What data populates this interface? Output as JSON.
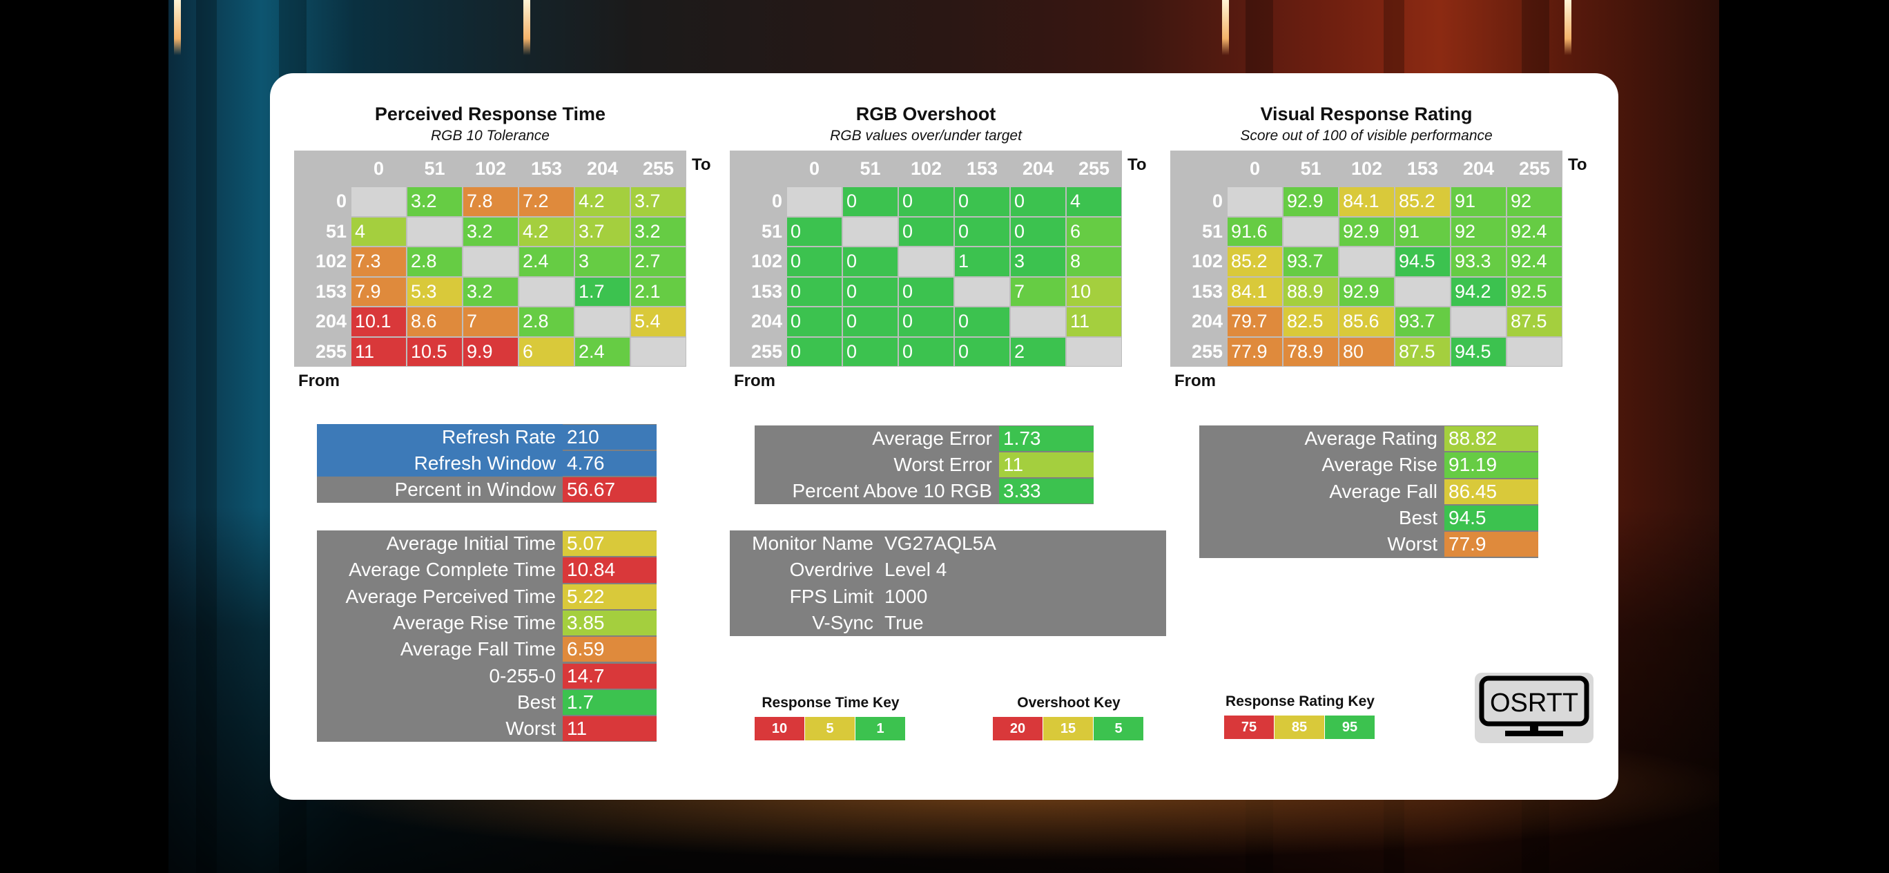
{
  "colors": {
    "heat_green": "#3cc24f",
    "heat_lightgreen": "#66cc44",
    "heat_yellowgreen": "#a4cf3e",
    "heat_yellow": "#d9c93a",
    "heat_orange": "#df8a3c",
    "heat_red": "#d9383a",
    "diag_gray": "#d4d4d4",
    "panel_gray": "#808080",
    "panel_blue": "#3d7ab8"
  },
  "chart_data": [
    {
      "type": "heatmap",
      "title": "Perceived Response Time",
      "subtitle": "RGB 10 Tolerance",
      "x_label": "To",
      "y_label": "From",
      "columns": [
        "0",
        "51",
        "102",
        "153",
        "204",
        "255"
      ],
      "rows": [
        "0",
        "51",
        "102",
        "153",
        "204",
        "255"
      ],
      "values": [
        [
          "",
          "3.2",
          "7.8",
          "7.2",
          "4.2",
          "3.7"
        ],
        [
          "4",
          "",
          "3.2",
          "4.2",
          "3.7",
          "3.2"
        ],
        [
          "7.3",
          "2.8",
          "",
          "2.4",
          "3",
          "2.7"
        ],
        [
          "7.9",
          "5.3",
          "3.2",
          "",
          "1.7",
          "2.1"
        ],
        [
          "10.1",
          "8.6",
          "7",
          "2.8",
          "",
          "5.4"
        ],
        [
          "11",
          "10.5",
          "9.9",
          "6",
          "2.4",
          ""
        ]
      ],
      "cell_colors": [
        [
          "diag_gray",
          "heat_lightgreen",
          "heat_orange",
          "heat_orange",
          "heat_yellowgreen",
          "heat_yellowgreen"
        ],
        [
          "heat_yellowgreen",
          "diag_gray",
          "heat_lightgreen",
          "heat_yellowgreen",
          "heat_yellowgreen",
          "heat_lightgreen"
        ],
        [
          "heat_orange",
          "heat_lightgreen",
          "diag_gray",
          "heat_lightgreen",
          "heat_lightgreen",
          "heat_lightgreen"
        ],
        [
          "heat_orange",
          "heat_yellow",
          "heat_lightgreen",
          "diag_gray",
          "heat_green",
          "heat_lightgreen"
        ],
        [
          "heat_red",
          "heat_orange",
          "heat_orange",
          "heat_lightgreen",
          "diag_gray",
          "heat_yellow"
        ],
        [
          "heat_red",
          "heat_red",
          "heat_red",
          "heat_yellow",
          "heat_lightgreen",
          "diag_gray"
        ]
      ]
    },
    {
      "type": "heatmap",
      "title": "RGB Overshoot",
      "subtitle": "RGB values over/under target",
      "x_label": "To",
      "y_label": "From",
      "columns": [
        "0",
        "51",
        "102",
        "153",
        "204",
        "255"
      ],
      "rows": [
        "0",
        "51",
        "102",
        "153",
        "204",
        "255"
      ],
      "values": [
        [
          "",
          "0",
          "0",
          "0",
          "0",
          "4"
        ],
        [
          "0",
          "",
          "0",
          "0",
          "0",
          "6"
        ],
        [
          "0",
          "0",
          "",
          "1",
          "3",
          "8"
        ],
        [
          "0",
          "0",
          "0",
          "",
          "7",
          "10"
        ],
        [
          "0",
          "0",
          "0",
          "0",
          "",
          "11"
        ],
        [
          "0",
          "0",
          "0",
          "0",
          "2",
          ""
        ]
      ],
      "cell_colors": [
        [
          "diag_gray",
          "heat_green",
          "heat_green",
          "heat_green",
          "heat_green",
          "heat_green"
        ],
        [
          "heat_green",
          "diag_gray",
          "heat_green",
          "heat_green",
          "heat_green",
          "heat_lightgreen"
        ],
        [
          "heat_green",
          "heat_green",
          "diag_gray",
          "heat_green",
          "heat_green",
          "heat_lightgreen"
        ],
        [
          "heat_green",
          "heat_green",
          "heat_green",
          "diag_gray",
          "heat_lightgreen",
          "heat_yellowgreen"
        ],
        [
          "heat_green",
          "heat_green",
          "heat_green",
          "heat_green",
          "diag_gray",
          "heat_yellowgreen"
        ],
        [
          "heat_green",
          "heat_green",
          "heat_green",
          "heat_green",
          "heat_green",
          "diag_gray"
        ]
      ]
    },
    {
      "type": "heatmap",
      "title": "Visual Response Rating",
      "subtitle": "Score out of 100 of visible performance",
      "x_label": "To",
      "y_label": "From",
      "columns": [
        "0",
        "51",
        "102",
        "153",
        "204",
        "255"
      ],
      "rows": [
        "0",
        "51",
        "102",
        "153",
        "204",
        "255"
      ],
      "values": [
        [
          "",
          "92.9",
          "84.1",
          "85.2",
          "91",
          "92"
        ],
        [
          "91.6",
          "",
          "92.9",
          "91",
          "92",
          "92.4"
        ],
        [
          "85.2",
          "93.7",
          "",
          "94.5",
          "93.3",
          "92.4"
        ],
        [
          "84.1",
          "88.9",
          "92.9",
          "",
          "94.2",
          "92.5"
        ],
        [
          "79.7",
          "82.5",
          "85.6",
          "93.7",
          "",
          "87.5"
        ],
        [
          "77.9",
          "78.9",
          "80",
          "87.5",
          "94.5",
          ""
        ]
      ],
      "cell_colors": [
        [
          "diag_gray",
          "heat_lightgreen",
          "heat_yellow",
          "heat_yellow",
          "heat_lightgreen",
          "heat_lightgreen"
        ],
        [
          "heat_lightgreen",
          "diag_gray",
          "heat_lightgreen",
          "heat_lightgreen",
          "heat_lightgreen",
          "heat_lightgreen"
        ],
        [
          "heat_yellow",
          "heat_lightgreen",
          "diag_gray",
          "heat_green",
          "heat_lightgreen",
          "heat_lightgreen"
        ],
        [
          "heat_yellow",
          "heat_yellowgreen",
          "heat_lightgreen",
          "diag_gray",
          "heat_green",
          "heat_lightgreen"
        ],
        [
          "heat_orange",
          "heat_yellow",
          "heat_yellow",
          "heat_lightgreen",
          "diag_gray",
          "heat_yellowgreen"
        ],
        [
          "heat_orange",
          "heat_orange",
          "heat_orange",
          "heat_yellowgreen",
          "heat_green",
          "diag_gray"
        ]
      ]
    }
  ],
  "tables": {
    "refresh": [
      {
        "label": "Refresh Rate",
        "value": "210",
        "label_color": "panel_blue",
        "value_color": "panel_blue"
      },
      {
        "label": "Refresh Window",
        "value": "4.76",
        "label_color": "panel_blue",
        "value_color": "panel_blue"
      },
      {
        "label": "Percent in Window",
        "value": "56.67",
        "label_color": "panel_gray",
        "value_color": "heat_red"
      }
    ],
    "timing": [
      {
        "label": "Average Initial Time",
        "value": "5.07",
        "value_color": "heat_yellow"
      },
      {
        "label": "Average Complete Time",
        "value": "10.84",
        "value_color": "heat_red"
      },
      {
        "label": "Average Perceived Time",
        "value": "5.22",
        "value_color": "heat_yellow"
      },
      {
        "label": "Average Rise Time",
        "value": "3.85",
        "value_color": "heat_yellowgreen"
      },
      {
        "label": "Average Fall Time",
        "value": "6.59",
        "value_color": "heat_orange"
      },
      {
        "label": "0-255-0",
        "value": "14.7",
        "value_color": "heat_red"
      },
      {
        "label": "Best",
        "value": "1.7",
        "value_color": "heat_green"
      },
      {
        "label": "Worst",
        "value": "11",
        "value_color": "heat_red"
      }
    ],
    "overshoot": [
      {
        "label": "Average Error",
        "value": "1.73",
        "value_color": "heat_green"
      },
      {
        "label": "Worst Error",
        "value": "11",
        "value_color": "heat_yellowgreen"
      },
      {
        "label": "Percent Above 10 RGB",
        "value": "3.33",
        "value_color": "heat_green"
      }
    ],
    "monitor": [
      {
        "label": "Monitor Name",
        "value": "VG27AQL5A"
      },
      {
        "label": "Overdrive",
        "value": "Level 4"
      },
      {
        "label": "FPS Limit",
        "value": "1000"
      },
      {
        "label": "V-Sync",
        "value": "True"
      }
    ],
    "rating": [
      {
        "label": "Average Rating",
        "value": "88.82",
        "value_color": "heat_yellowgreen"
      },
      {
        "label": "Average Rise",
        "value": "91.19",
        "value_color": "heat_lightgreen"
      },
      {
        "label": "Average Fall",
        "value": "86.45",
        "value_color": "heat_yellow"
      },
      {
        "label": "Best",
        "value": "94.5",
        "value_color": "heat_green"
      },
      {
        "label": "Worst",
        "value": "77.9",
        "value_color": "heat_orange"
      }
    ]
  },
  "keys": [
    {
      "title": "Response Time Key",
      "cells": [
        {
          "label": "10",
          "color": "heat_red"
        },
        {
          "label": "5",
          "color": "heat_yellow"
        },
        {
          "label": "1",
          "color": "heat_green"
        }
      ]
    },
    {
      "title": "Overshoot Key",
      "cells": [
        {
          "label": "20",
          "color": "heat_red"
        },
        {
          "label": "15",
          "color": "heat_yellow"
        },
        {
          "label": "5",
          "color": "heat_green"
        }
      ]
    },
    {
      "title": "Response Rating Key",
      "cells": [
        {
          "label": "75",
          "color": "heat_red"
        },
        {
          "label": "85",
          "color": "heat_yellow"
        },
        {
          "label": "95",
          "color": "heat_green"
        }
      ]
    }
  ],
  "logo": {
    "text": "OSRTT",
    "icon": "monitor-icon"
  }
}
